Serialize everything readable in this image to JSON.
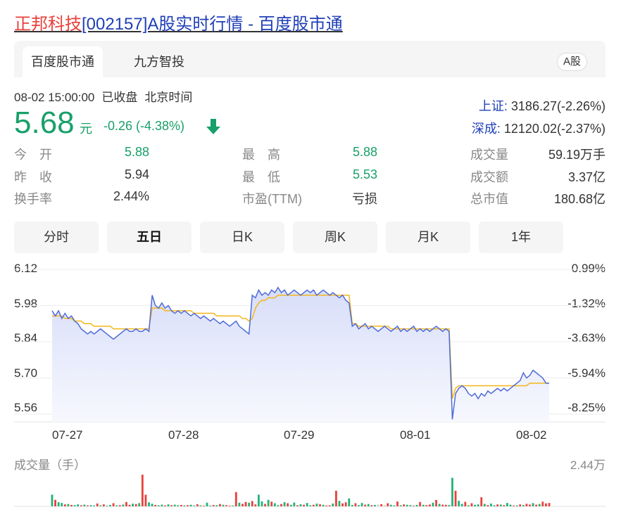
{
  "header": {
    "title_highlight": "正邦科技",
    "title_rest": "[002157]A股实时行情 - 百度股市通"
  },
  "tabs": [
    {
      "label": "百度股市通",
      "active": true
    },
    {
      "label": "九方智投",
      "active": false
    }
  ],
  "market_badge": "A股",
  "status": {
    "datetime": "08-02 15:00:00",
    "state": "已收盘",
    "tz": "北京时间"
  },
  "quote": {
    "price": "5.68",
    "unit": "元",
    "change": "-0.26 (-4.38%)",
    "direction": "down",
    "color_down": "#19a06a"
  },
  "indices": [
    {
      "name": "上证:",
      "value": "3186.27(-2.26%)"
    },
    {
      "name": "深成:",
      "value": "12120.02(-2.37%)"
    }
  ],
  "stats": [
    {
      "label": "今　开",
      "value": "5.88",
      "tone": "green"
    },
    {
      "label": "昨　收",
      "value": "5.94",
      "tone": "dark"
    },
    {
      "label": "换手率",
      "value": "2.44%",
      "tone": "dark"
    },
    {
      "label": "最　高",
      "value": "5.88",
      "tone": "green"
    },
    {
      "label": "最　低",
      "value": "5.53",
      "tone": "green"
    },
    {
      "label": "市盈(TTM)",
      "value": "亏损",
      "tone": "dark"
    },
    {
      "label": "成交量",
      "value": "59.19万手",
      "tone": "dark"
    },
    {
      "label": "成交额",
      "value": "3.37亿",
      "tone": "dark"
    },
    {
      "label": "总市值",
      "value": "180.68亿",
      "tone": "dark"
    }
  ],
  "periods": [
    {
      "label": "分时",
      "active": false
    },
    {
      "label": "五日",
      "active": true
    },
    {
      "label": "日K",
      "active": false
    },
    {
      "label": "周K",
      "active": false
    },
    {
      "label": "月K",
      "active": false
    },
    {
      "label": "1年",
      "active": false
    }
  ],
  "chart_data": {
    "type": "line",
    "title": "",
    "y_ticks_price": [
      "6.12",
      "5.98",
      "5.84",
      "5.70",
      "5.56"
    ],
    "y_ticks_pct": [
      "0.99%",
      "-1.32%",
      "-3.63%",
      "-5.94%",
      "-8.25%"
    ],
    "ylim": [
      5.53,
      6.12
    ],
    "x_ticks": [
      "07-27",
      "07-28",
      "07-29",
      "08-01",
      "08-02"
    ],
    "colors": {
      "price": "#4f6bd8",
      "avg": "#f2b61b",
      "fill_top": "#dfe5fb",
      "up": "#e8413b",
      "down": "#1fb37a",
      "neutral": "#cccccc"
    },
    "series": [
      {
        "name": "price",
        "values": [
          5.96,
          5.94,
          5.96,
          5.93,
          5.95,
          5.93,
          5.94,
          5.92,
          5.91,
          5.89,
          5.88,
          5.87,
          5.88,
          5.87,
          5.88,
          5.89,
          5.88,
          5.87,
          5.86,
          5.85,
          5.86,
          5.87,
          5.88,
          5.89,
          5.88,
          5.88,
          5.89,
          5.88,
          5.88,
          5.89,
          5.88,
          6.02,
          5.98,
          5.97,
          5.99,
          5.97,
          5.98,
          5.96,
          5.95,
          5.96,
          5.95,
          5.96,
          5.95,
          5.94,
          5.95,
          5.94,
          5.93,
          5.94,
          5.93,
          5.92,
          5.93,
          5.92,
          5.91,
          5.92,
          5.91,
          5.9,
          5.91,
          5.92,
          5.9,
          5.89,
          5.88,
          5.87,
          6.02,
          6.01,
          6.04,
          6.02,
          6.03,
          6.02,
          6.04,
          6.03,
          6.05,
          6.03,
          6.04,
          6.02,
          6.03,
          6.04,
          6.03,
          6.02,
          6.03,
          6.04,
          6.03,
          6.04,
          6.02,
          6.03,
          6.04,
          6.03,
          6.02,
          6.03,
          6.02,
          6.01,
          6.02,
          6.0,
          5.99,
          5.9,
          5.91,
          5.89,
          5.9,
          5.91,
          5.89,
          5.9,
          5.89,
          5.88,
          5.89,
          5.9,
          5.89,
          5.88,
          5.89,
          5.9,
          5.88,
          5.89,
          5.88,
          5.89,
          5.9,
          5.88,
          5.89,
          5.88,
          5.89,
          5.88,
          5.89,
          5.9,
          5.89,
          5.88,
          5.89,
          5.88,
          5.54,
          5.64,
          5.66,
          5.67,
          5.66,
          5.64,
          5.63,
          5.64,
          5.62,
          5.64,
          5.63,
          5.65,
          5.64,
          5.65,
          5.66,
          5.65,
          5.66,
          5.65,
          5.66,
          5.67,
          5.68,
          5.69,
          5.72,
          5.7,
          5.71,
          5.73,
          5.72,
          5.71,
          5.7,
          5.68,
          5.68
        ]
      },
      {
        "name": "avg",
        "values": [
          5.94,
          5.94,
          5.94,
          5.94,
          5.93,
          5.93,
          5.93,
          5.92,
          5.92,
          5.92,
          5.91,
          5.91,
          5.91,
          5.9,
          5.9,
          5.9,
          5.9,
          5.9,
          5.9,
          5.89,
          5.89,
          5.89,
          5.89,
          5.89,
          5.89,
          5.89,
          5.89,
          5.89,
          5.89,
          5.89,
          5.89,
          5.97,
          5.97,
          5.97,
          5.97,
          5.96,
          5.96,
          5.96,
          5.96,
          5.96,
          5.96,
          5.96,
          5.96,
          5.96,
          5.95,
          5.95,
          5.95,
          5.95,
          5.95,
          5.95,
          5.95,
          5.94,
          5.94,
          5.94,
          5.94,
          5.94,
          5.94,
          5.94,
          5.94,
          5.93,
          5.93,
          5.92,
          5.93,
          5.97,
          5.99,
          6.0,
          6.0,
          6.01,
          6.01,
          6.01,
          6.02,
          6.02,
          6.02,
          6.02,
          6.02,
          6.02,
          6.02,
          6.02,
          6.02,
          6.02,
          6.02,
          6.02,
          6.02,
          6.02,
          6.02,
          6.02,
          6.02,
          6.02,
          6.02,
          6.02,
          6.02,
          6.02,
          6.02,
          5.91,
          5.91,
          5.9,
          5.9,
          5.9,
          5.9,
          5.9,
          5.9,
          5.9,
          5.9,
          5.9,
          5.9,
          5.89,
          5.89,
          5.89,
          5.89,
          5.89,
          5.89,
          5.89,
          5.89,
          5.89,
          5.89,
          5.89,
          5.89,
          5.89,
          5.89,
          5.89,
          5.89,
          5.89,
          5.89,
          5.89,
          5.62,
          5.66,
          5.67,
          5.67,
          5.67,
          5.67,
          5.67,
          5.67,
          5.67,
          5.67,
          5.67,
          5.67,
          5.67,
          5.67,
          5.67,
          5.67,
          5.67,
          5.67,
          5.67,
          5.67,
          5.67,
          5.67,
          5.67,
          5.67,
          5.68,
          5.68,
          5.68,
          5.68,
          5.68,
          5.68,
          5.68
        ]
      }
    ],
    "volume_title": "成交量（手）",
    "volume_max_label": "2.44万",
    "volume_max": 24400,
    "volume": [
      9000,
      5000,
      3200,
      2600,
      1500,
      1800,
      1100,
      900,
      1500,
      800,
      1300,
      700,
      900,
      600,
      2200,
      700,
      1500,
      500,
      1100,
      2400,
      700,
      900,
      1400,
      3300,
      1200,
      2100,
      1800,
      2500,
      24400,
      9000,
      3100,
      2000,
      1100,
      800,
      1300,
      700,
      1500,
      900,
      1300,
      800,
      1100,
      700,
      900,
      1200,
      600,
      1600,
      700,
      500,
      2800,
      600,
      1000,
      900,
      1800,
      1200,
      900,
      500,
      600,
      11000,
      2800,
      1900,
      3400,
      2800,
      4100,
      1500,
      9000,
      3800,
      1900,
      5000,
      3600,
      2400,
      900,
      1800,
      3200,
      2400,
      1200,
      2900,
      800,
      1600,
      1200,
      2600,
      800,
      1200,
      2100,
      1600,
      1200,
      600,
      800,
      2200,
      12000,
      4200,
      2300,
      3100,
      6100,
      1100,
      2400,
      900,
      2600,
      1300,
      1800,
      900,
      1100,
      1300,
      1700,
      900,
      2400,
      1200,
      700,
      3700,
      800,
      1500,
      1200,
      900,
      500,
      1100,
      3300,
      1200,
      900,
      1400,
      2800,
      4900,
      1900,
      1300,
      1200,
      1000,
      22000,
      12000,
      4300,
      1900,
      3500,
      800,
      2400,
      1200,
      1500,
      7000,
      1900,
      1000,
      2100,
      800,
      1500,
      1400,
      900,
      2600,
      1300,
      600,
      700,
      1500,
      1000,
      2000,
      1400,
      2500,
      1300,
      1800,
      3600,
      2300,
      2600
    ],
    "volume_dir": [
      "d",
      "u",
      "d",
      "d",
      "u",
      "d",
      "u",
      "d",
      "d",
      "u",
      "d",
      "u",
      "d",
      "d",
      "u",
      "d",
      "u",
      "d",
      "d",
      "u",
      "d",
      "u",
      "d",
      "u",
      "u",
      "d",
      "u",
      "d",
      "u",
      "u",
      "d",
      "d",
      "u",
      "d",
      "d",
      "u",
      "d",
      "u",
      "d",
      "d",
      "u",
      "d",
      "u",
      "d",
      "d",
      "u",
      "d",
      "u",
      "d",
      "d",
      "u",
      "d",
      "u",
      "d",
      "u",
      "u",
      "d",
      "u",
      "d",
      "u",
      "u",
      "d",
      "u",
      "u",
      "d",
      "d",
      "u",
      "d",
      "u",
      "d",
      "d",
      "u",
      "d",
      "u",
      "d",
      "d",
      "u",
      "d",
      "u",
      "d",
      "d",
      "u",
      "d",
      "u",
      "d",
      "u",
      "u",
      "d",
      "u",
      "d",
      "u",
      "u",
      "d",
      "d",
      "u",
      "d",
      "d",
      "u",
      "d",
      "u",
      "d",
      "n",
      "u",
      "n",
      "u",
      "d",
      "d",
      "u",
      "d",
      "u",
      "d",
      "d",
      "u",
      "d",
      "u",
      "d",
      "u",
      "u",
      "d",
      "u",
      "d",
      "u",
      "u",
      "d",
      "d",
      "u",
      "d",
      "d",
      "u",
      "d",
      "u",
      "d",
      "d",
      "u",
      "d",
      "u",
      "d",
      "d",
      "u",
      "d",
      "u",
      "d",
      "d",
      "u",
      "d",
      "u",
      "d",
      "u",
      "u",
      "d",
      "u",
      "d",
      "u",
      "u",
      "u"
    ]
  }
}
